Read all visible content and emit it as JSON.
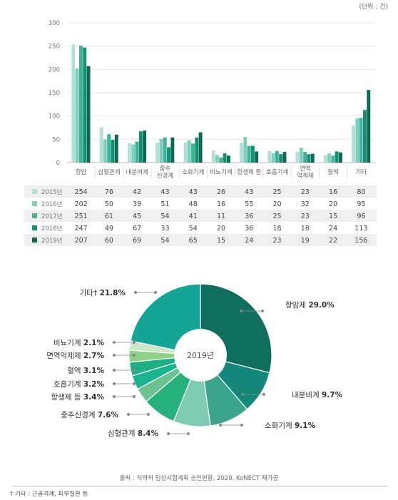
{
  "unit_label": "(단위 : 건)",
  "source": "출처 : 식약처 임상시험계획 승인현황, 2020, KoNECT 재가공",
  "footnote": "† 기타 : 근골격계, 피부질환 등",
  "chart_data": [
    {
      "type": "bar",
      "categories": [
        "항암",
        "심혈관계",
        "내분비계",
        "중추\n신경계",
        "소화기계",
        "비뇨기계",
        "항생제 등",
        "호흡기계",
        "면역\n억제제",
        "혈액",
        "기타"
      ],
      "series": [
        {
          "name": "2015년",
          "color": "#b3e0d6",
          "values": [
            254,
            76,
            42,
            43,
            43,
            26,
            43,
            25,
            23,
            16,
            80
          ]
        },
        {
          "name": "2016년",
          "color": "#7fcfbc",
          "values": [
            202,
            50,
            39,
            51,
            48,
            16,
            55,
            20,
            32,
            20,
            95
          ]
        },
        {
          "name": "2017년",
          "color": "#3fb39a",
          "values": [
            251,
            61,
            45,
            54,
            41,
            11,
            36,
            25,
            23,
            15,
            96
          ]
        },
        {
          "name": "2018년",
          "color": "#148f73",
          "values": [
            247,
            49,
            67,
            33,
            54,
            20,
            36,
            18,
            18,
            24,
            113
          ]
        },
        {
          "name": "2019년",
          "color": "#0a6a54",
          "values": [
            207,
            60,
            69,
            54,
            65,
            15,
            24,
            23,
            19,
            22,
            156
          ]
        }
      ],
      "yticks": [
        0,
        50,
        100,
        150,
        200,
        250,
        300
      ],
      "ylim": [
        0,
        300
      ],
      "grid": true
    },
    {
      "type": "pie",
      "center_label": "2019년",
      "slices": [
        {
          "label": "항암제",
          "value": 29.0,
          "pct": "29.0%",
          "color": "#0f6e5e"
        },
        {
          "label": "내분비계",
          "value": 9.7,
          "pct": "9.7%",
          "color": "#12877a"
        },
        {
          "label": "소화기계",
          "value": 9.1,
          "pct": "9.1%",
          "color": "#3aa58c"
        },
        {
          "label": "심혈관계",
          "value": 8.4,
          "pct": "8.4%",
          "color": "#7fcbb2"
        },
        {
          "label": "중추신경계",
          "value": 7.6,
          "pct": "7.6%",
          "color": "#25b07c"
        },
        {
          "label": "항생제 등",
          "value": 3.4,
          "pct": "3.4%",
          "color": "#6cc392"
        },
        {
          "label": "호흡기계",
          "value": 3.2,
          "pct": "3.2%",
          "color": "#19b48d"
        },
        {
          "label": "혈액",
          "value": 3.1,
          "pct": "3.1%",
          "color": "#20ae85"
        },
        {
          "label": "면역억제제",
          "value": 2.7,
          "pct": "2.7%",
          "color": "#8fd08a"
        },
        {
          "label": "비뇨기계",
          "value": 2.1,
          "pct": "2.1%",
          "color": "#c9e8c7"
        },
        {
          "label": "기타†",
          "value": 21.8,
          "pct": "21.8%",
          "color": "#15a596"
        }
      ]
    }
  ]
}
